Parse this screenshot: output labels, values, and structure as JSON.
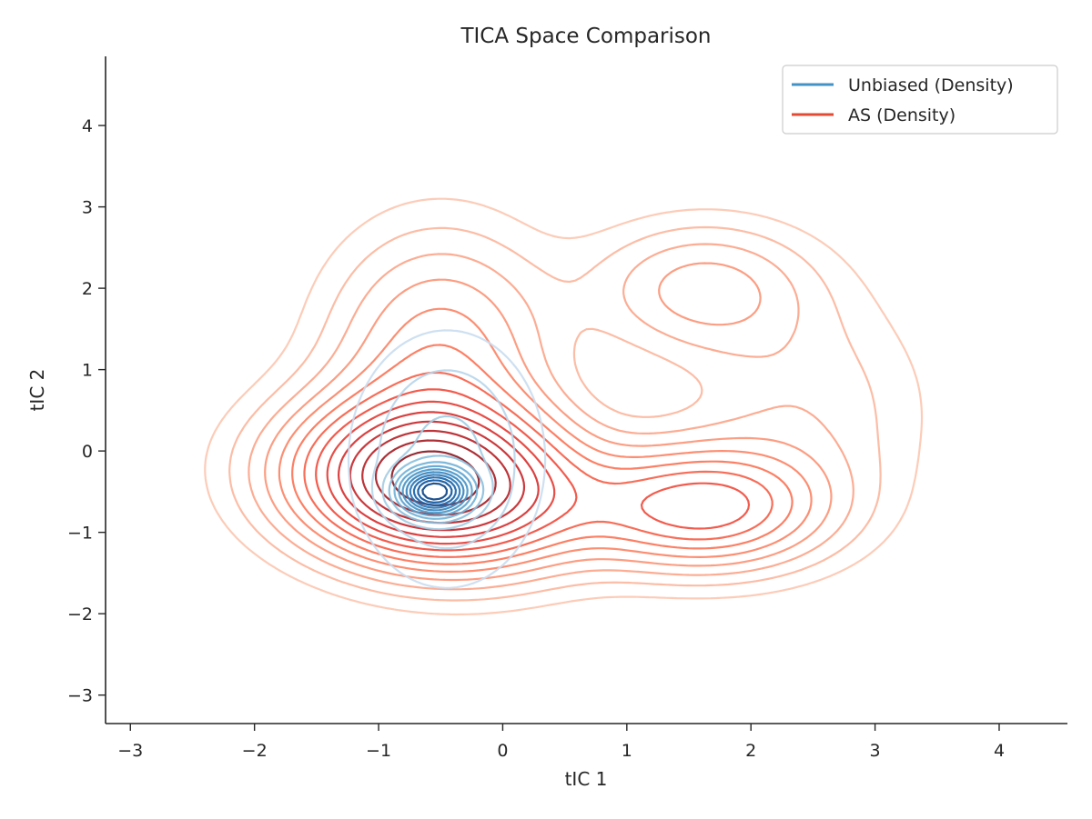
{
  "chart_data": {
    "type": "contour",
    "title": "TICA Space Comparison",
    "xlabel": "tIC 1",
    "ylabel": "tIC 2",
    "xlim": [
      -3.2,
      4.55
    ],
    "ylim": [
      -3.35,
      4.85
    ],
    "x_ticks": [
      -3,
      -2,
      -1,
      0,
      1,
      2,
      3,
      4
    ],
    "y_ticks": [
      -3,
      -2,
      -1,
      0,
      1,
      2,
      3,
      4
    ],
    "x_tick_labels": [
      "−3",
      "−2",
      "−1",
      "0",
      "1",
      "2",
      "3",
      "4"
    ],
    "y_tick_labels": [
      "−3",
      "−2",
      "−1",
      "0",
      "1",
      "2",
      "3",
      "4"
    ],
    "grid": false,
    "legend_position": "top-right",
    "series": [
      {
        "name": "Unbiased (Density)",
        "legend_color": "#4292c6",
        "colormap": "Blues",
        "components": [
          {
            "weight": 0.8,
            "mean": [
              -0.45,
              -0.1
            ],
            "sigma": [
              0.5,
              1.0
            ],
            "rho": 0.0
          },
          {
            "weight": 0.06,
            "mean": [
              1.6,
              2.1
            ],
            "sigma": [
              0.35,
              0.45
            ],
            "rho": 0.0
          },
          {
            "weight": 0.04,
            "mean": [
              1.7,
              -0.75
            ],
            "sigma": [
              0.35,
              0.35
            ],
            "rho": 0.0
          },
          {
            "weight": 0.25,
            "mean": [
              -0.55,
              -0.5
            ],
            "sigma": [
              0.18,
              0.18
            ],
            "rho": 0.0
          }
        ]
      },
      {
        "name": "AS (Density)",
        "legend_color": "#e34a33",
        "colormap": "Reds",
        "components": [
          {
            "weight": 0.55,
            "mean": [
              -0.55,
              -0.4
            ],
            "sigma": [
              0.75,
              0.65
            ],
            "rho": -0.1
          },
          {
            "weight": 0.2,
            "mean": [
              -0.5,
              1.2
            ],
            "sigma": [
              0.6,
              1.0
            ],
            "rho": 0.0
          },
          {
            "weight": 0.18,
            "mean": [
              1.6,
              -0.7
            ],
            "sigma": [
              0.65,
              0.5
            ],
            "rho": 0.0
          },
          {
            "weight": 0.08,
            "mean": [
              1.6,
              2.0
            ],
            "sigma": [
              0.6,
              0.55
            ],
            "rho": 0.0
          },
          {
            "weight": 0.1,
            "mean": [
              2.4,
              0.5
            ],
            "sigma": [
              0.7,
              1.0
            ],
            "rho": 0.0
          }
        ]
      }
    ]
  }
}
